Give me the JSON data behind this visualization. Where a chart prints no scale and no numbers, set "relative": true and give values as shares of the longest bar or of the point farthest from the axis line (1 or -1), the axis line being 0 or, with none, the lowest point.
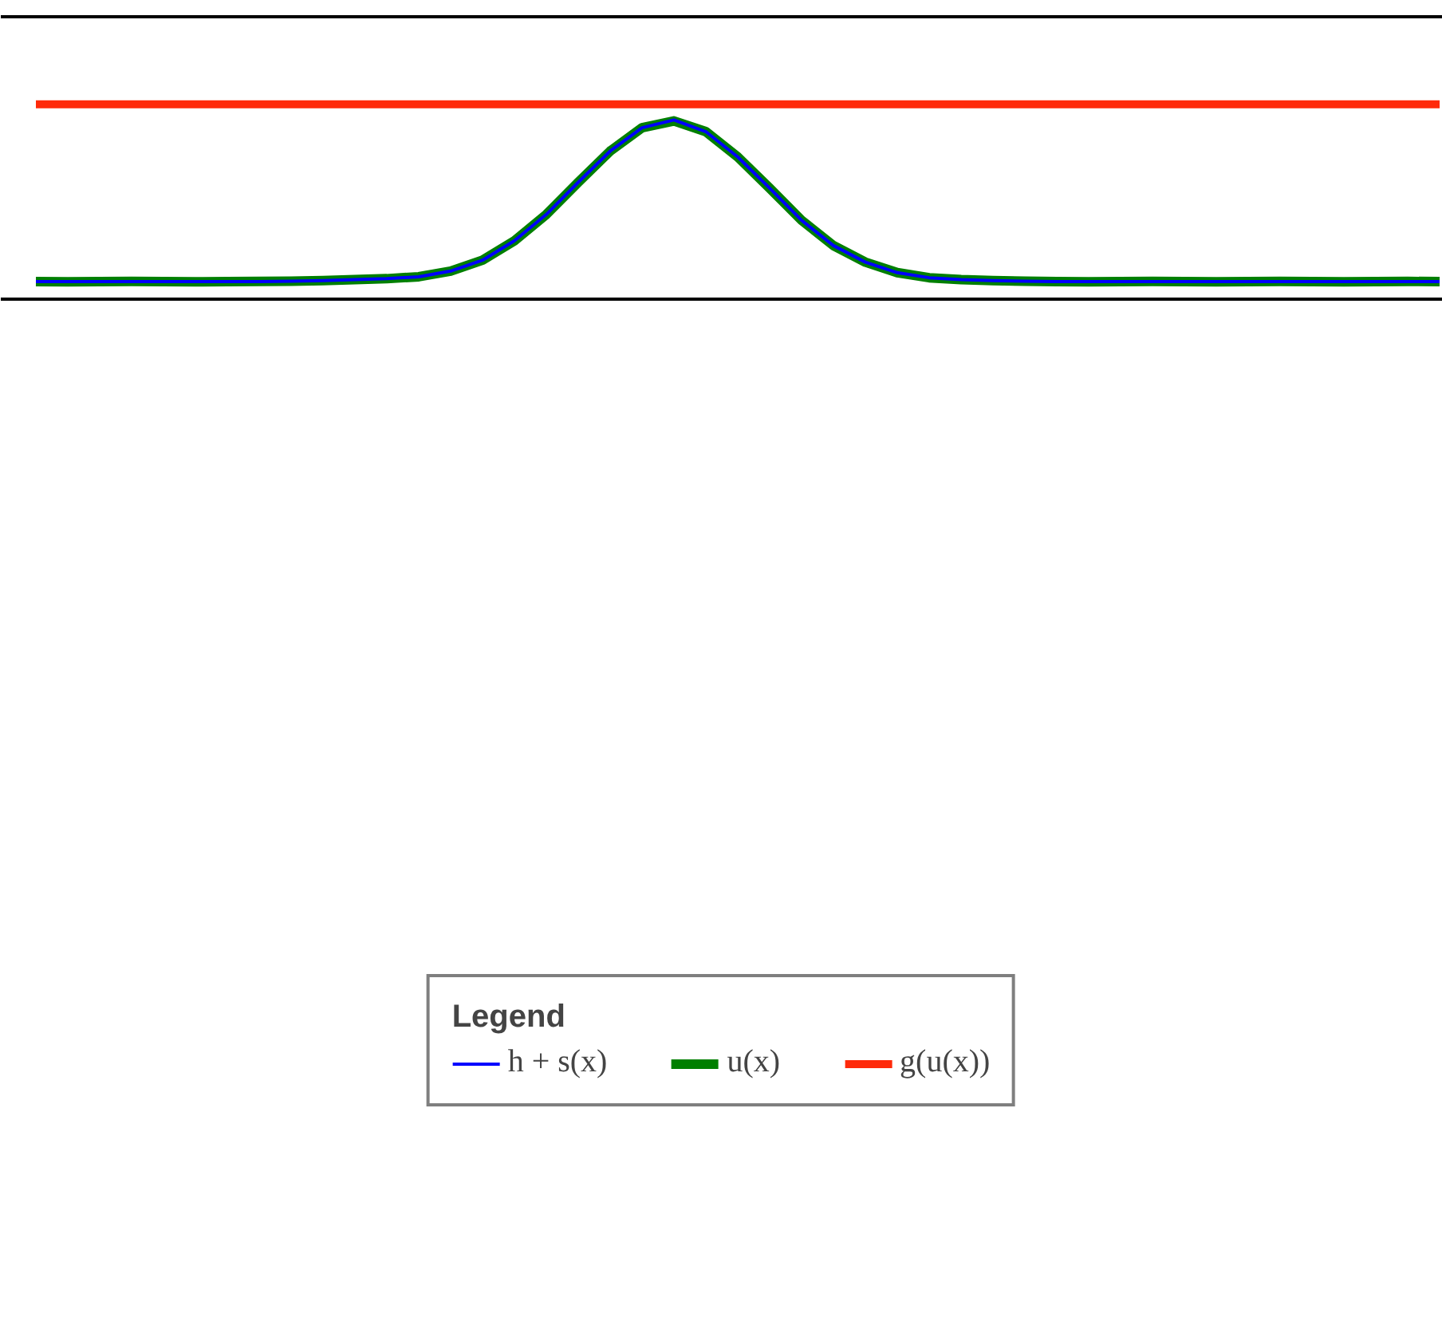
{
  "chart_data": {
    "type": "line",
    "relative": true,
    "legend": "bottom",
    "legend_title": "Legend",
    "categories": [
      null,
      null,
      null,
      null,
      null,
      null,
      null,
      null,
      null,
      null,
      null,
      null,
      null,
      null,
      null,
      null,
      null,
      null,
      null,
      null,
      null,
      null,
      null,
      null,
      null,
      null,
      null,
      null,
      null,
      null,
      null,
      null,
      null,
      null,
      null,
      null,
      null,
      null,
      null,
      null,
      null,
      null,
      null,
      null,
      null
    ],
    "series": [
      {
        "name": "h + s(x)",
        "color": "#0000ff",
        "values": [
          0.09,
          0.09,
          0.09,
          0.09,
          0.09,
          0.09,
          0.09,
          0.09,
          0.092,
          0.095,
          0.1,
          0.105,
          0.115,
          0.144,
          0.2,
          0.3,
          0.435,
          0.6,
          0.76,
          0.88,
          0.92,
          0.86,
          0.73,
          0.57,
          0.405,
          0.275,
          0.19,
          0.136,
          0.11,
          0.1,
          0.095,
          0.092,
          0.09,
          0.09,
          0.09,
          0.09,
          0.09,
          0.09,
          0.09,
          0.09,
          0.09,
          0.09,
          0.09,
          0.09,
          0.09
        ]
      },
      {
        "name": "u(x)",
        "color": "#007f00",
        "values": [
          0.09,
          0.089,
          0.09,
          0.091,
          0.09,
          0.089,
          0.09,
          0.091,
          0.092,
          0.095,
          0.1,
          0.105,
          0.115,
          0.144,
          0.2,
          0.3,
          0.435,
          0.6,
          0.76,
          0.88,
          0.915,
          0.86,
          0.73,
          0.57,
          0.405,
          0.275,
          0.19,
          0.136,
          0.11,
          0.1,
          0.095,
          0.092,
          0.09,
          0.089,
          0.09,
          0.091,
          0.09,
          0.089,
          0.09,
          0.091,
          0.09,
          0.089,
          0.09,
          0.091,
          0.09
        ]
      },
      {
        "name": "g(u(x))",
        "color": "#ff2a0a",
        "values": [
          1,
          1,
          1,
          1,
          1,
          1,
          1,
          1,
          1,
          1,
          1,
          1,
          1,
          1,
          1,
          1,
          1,
          1,
          1,
          1,
          1,
          1,
          1,
          1,
          1,
          1,
          1,
          1,
          1,
          1,
          1,
          1,
          1,
          1,
          1,
          1,
          1,
          1,
          1,
          1,
          1,
          1,
          1,
          1,
          1
        ]
      }
    ]
  }
}
